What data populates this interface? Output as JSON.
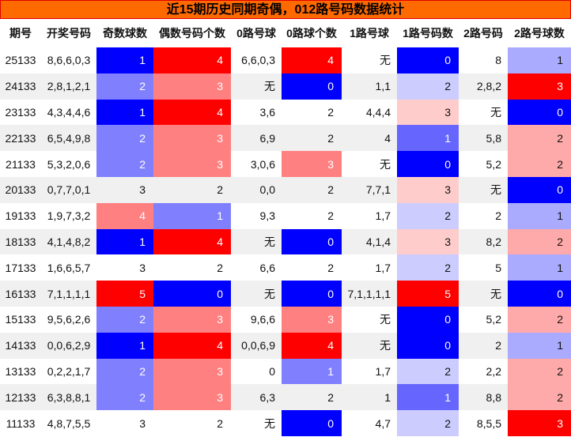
{
  "title": "近15期历史同期奇偶，012路号码数据统计",
  "heat_colors": {
    "low": "#0000ff",
    "mid": "#ffffff",
    "high": "#ff0000"
  },
  "table": {
    "headers": [
      "期号",
      "开奖号码",
      "奇数球数",
      "偶数号码个数",
      "0路号球",
      "0路球个数",
      "1路号球",
      "1路号码数",
      "2路号码",
      "2路号球数"
    ],
    "rows": [
      [
        "25133",
        "8,6,6,0,3",
        1,
        4,
        "6,6,0,3",
        4,
        "无",
        0,
        "8",
        1
      ],
      [
        "24133",
        "2,8,1,2,1",
        2,
        3,
        "无",
        0,
        "1,1",
        2,
        "2,8,2",
        3
      ],
      [
        "23133",
        "4,3,4,4,6",
        1,
        4,
        "3,6",
        2,
        "4,4,4",
        3,
        "无",
        0
      ],
      [
        "22133",
        "6,5,4,9,8",
        2,
        3,
        "6,9",
        2,
        "4",
        1,
        "5,8",
        2
      ],
      [
        "21133",
        "5,3,2,0,6",
        2,
        3,
        "3,0,6",
        3,
        "无",
        0,
        "5,2",
        2
      ],
      [
        "20133",
        "0,7,7,0,1",
        3,
        2,
        "0,0",
        2,
        "7,7,1",
        3,
        "无",
        0
      ],
      [
        "19133",
        "1,9,7,3,2",
        4,
        1,
        "9,3",
        2,
        "1,7",
        2,
        "2",
        1
      ],
      [
        "18133",
        "4,1,4,8,2",
        1,
        4,
        "无",
        0,
        "4,1,4",
        3,
        "8,2",
        2
      ],
      [
        "17133",
        "1,6,6,5,7",
        3,
        2,
        "6,6",
        2,
        "1,7",
        2,
        "5",
        1
      ],
      [
        "16133",
        "7,1,1,1,1",
        5,
        0,
        "无",
        0,
        "7,1,1,1,1",
        5,
        "无",
        0
      ],
      [
        "15133",
        "9,5,6,2,6",
        2,
        3,
        "9,6,6",
        3,
        "无",
        0,
        "5,2",
        2
      ],
      [
        "14133",
        "0,0,6,2,9",
        1,
        4,
        "0,0,6,9",
        4,
        "无",
        0,
        "2",
        1
      ],
      [
        "13133",
        "0,2,2,1,7",
        2,
        3,
        "0",
        1,
        "1,7",
        2,
        "2,2",
        2
      ],
      [
        "12133",
        "6,3,8,8,1",
        2,
        3,
        "6,3",
        2,
        "1",
        1,
        "8,8",
        2
      ],
      [
        "11133",
        "4,8,7,5,5",
        3,
        2,
        "无",
        0,
        "4,7",
        2,
        "8,5,5",
        3
      ]
    ]
  }
}
